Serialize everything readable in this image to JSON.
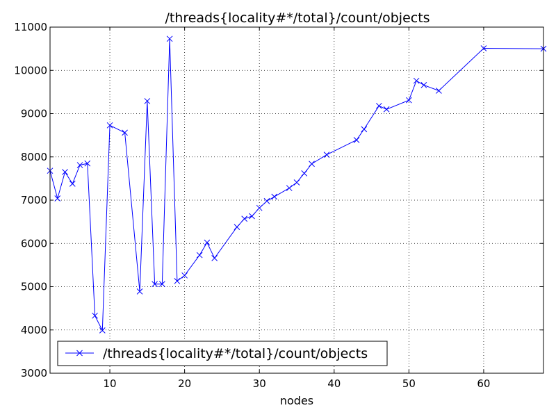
{
  "chart_data": {
    "type": "line",
    "title": "/threads{locality#*/total}/count/objects",
    "xlabel": "nodes",
    "ylabel": "",
    "xlim": [
      2,
      68
    ],
    "ylim": [
      3000,
      11000
    ],
    "xticks": [
      10,
      20,
      30,
      40,
      50,
      60
    ],
    "yticks": [
      3000,
      4000,
      5000,
      6000,
      7000,
      8000,
      9000,
      10000,
      11000
    ],
    "grid": true,
    "legend_position": "lower-left",
    "series": [
      {
        "name": "/threads{locality#*/total}/count/objects",
        "color": "#0000ff",
        "marker": "x",
        "x": [
          2,
          3,
          4,
          5,
          6,
          7,
          8,
          9,
          10,
          12,
          14,
          15,
          16,
          17,
          18,
          19,
          20,
          22,
          23,
          24,
          27,
          28,
          29,
          30,
          31,
          32,
          34,
          35,
          36,
          37,
          39,
          43,
          44,
          46,
          47,
          50,
          51,
          52,
          54,
          60,
          68
        ],
        "y": [
          7680,
          7040,
          7650,
          7380,
          7810,
          7850,
          4330,
          3990,
          8730,
          8560,
          4890,
          9290,
          5060,
          5060,
          10730,
          5130,
          5260,
          5730,
          6020,
          5660,
          6380,
          6570,
          6630,
          6820,
          6980,
          7080,
          7280,
          7410,
          7620,
          7840,
          8050,
          8390,
          8640,
          9180,
          9100,
          9310,
          9760,
          9660,
          9530,
          10510,
          10500
        ]
      }
    ]
  }
}
